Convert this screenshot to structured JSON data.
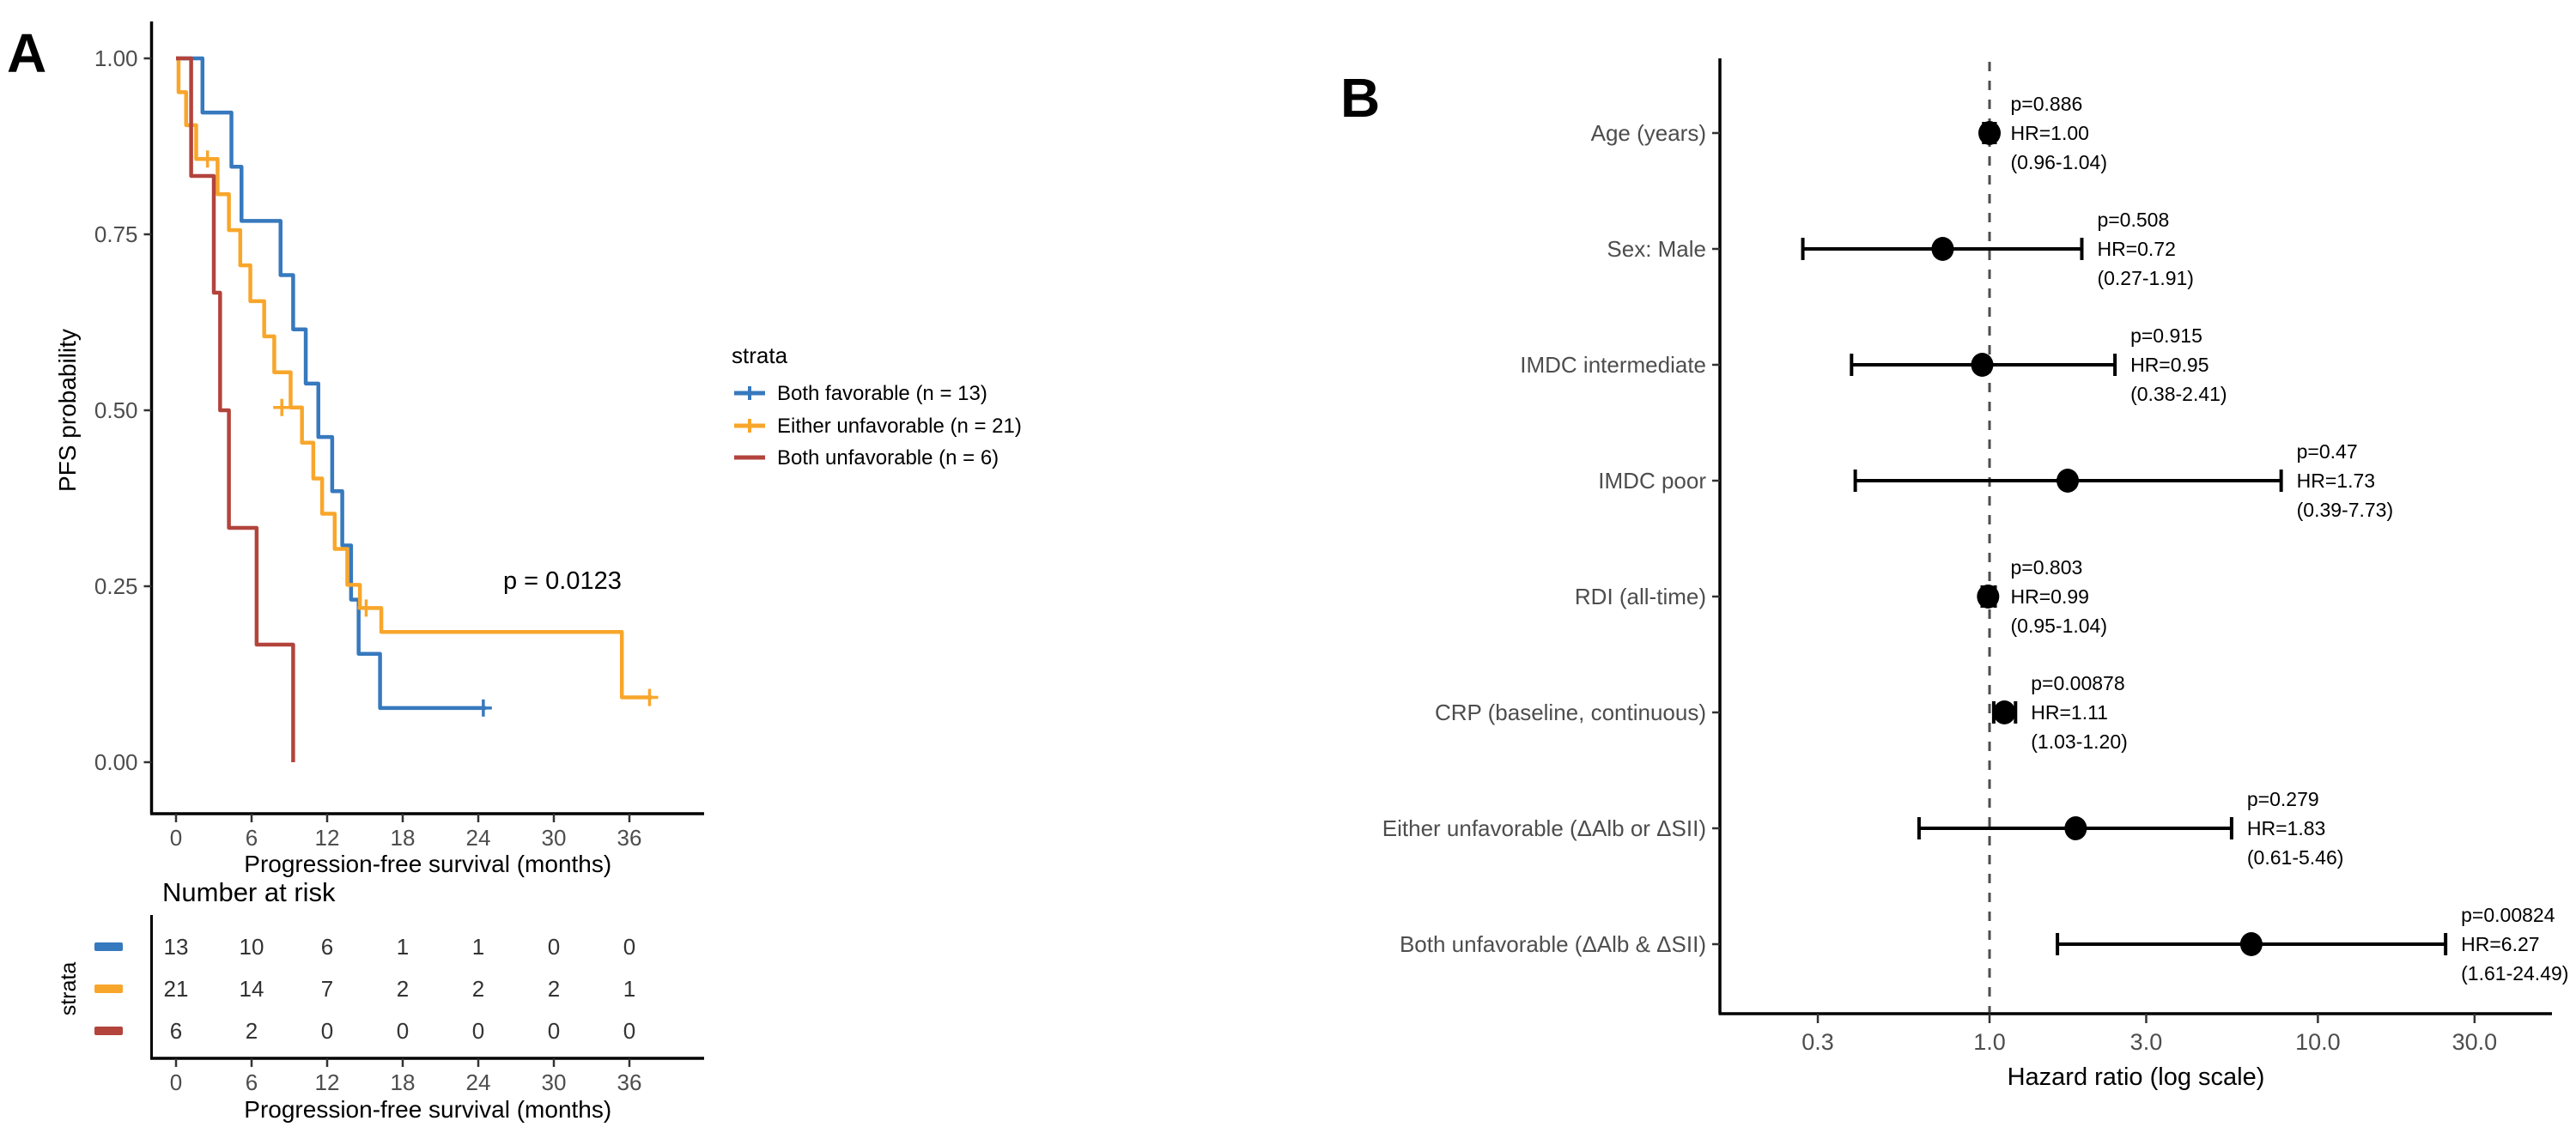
{
  "figure": {
    "panel_a_label": "A",
    "panel_b_label": "B"
  },
  "colors": {
    "blue": "#3779BE",
    "orange": "#F8A62B",
    "red": "#B2443C",
    "axis_text": "#4d4d4d",
    "black": "#000000",
    "ref_dash": "#4d4d4d"
  },
  "chart_data": [
    {
      "type": "line",
      "subtype": "kaplan-meier",
      "title": "",
      "xlabel": "Progression-free survival (months)",
      "ylabel": "PFS probability",
      "x_ticks": [
        0,
        6,
        12,
        18,
        24,
        30,
        36
      ],
      "y_ticks": [
        "1.00",
        "0.75",
        "0.50",
        "0.25",
        "0.00"
      ],
      "y_tick_values": [
        1.0,
        0.75,
        0.5,
        0.25,
        0.0
      ],
      "xlim": [
        -2,
        42
      ],
      "ylim": [
        0,
        1
      ],
      "grid": false,
      "p_value_label": "p = 0.0123",
      "legend_title": "strata",
      "legend_position": "right",
      "series": [
        {
          "name": "Both favorable (n = 13)",
          "color": "#3779BE",
          "steps": [
            [
              0,
              1.0
            ],
            [
              2.1,
              0.923
            ],
            [
              4.4,
              0.846
            ],
            [
              5.2,
              0.769
            ],
            [
              8.3,
              0.692
            ],
            [
              9.3,
              0.615
            ],
            [
              10.3,
              0.538
            ],
            [
              11.3,
              0.462
            ],
            [
              12.4,
              0.385
            ],
            [
              13.2,
              0.308
            ],
            [
              13.9,
              0.231
            ],
            [
              14.5,
              0.154
            ],
            [
              16.2,
              0.077
            ]
          ],
          "end": 24.6,
          "censors": [
            [
              24.4,
              0.077
            ]
          ]
        },
        {
          "name": "Either unfavorable (n = 21)",
          "color": "#F8A62B",
          "steps": [
            [
              0,
              1.0
            ],
            [
              0.2,
              0.952
            ],
            [
              0.8,
              0.905
            ],
            [
              1.6,
              0.857
            ],
            [
              3.3,
              0.807
            ],
            [
              4.2,
              0.756
            ],
            [
              5.1,
              0.706
            ],
            [
              5.9,
              0.655
            ],
            [
              7.0,
              0.605
            ],
            [
              7.8,
              0.554
            ],
            [
              9.1,
              0.504
            ],
            [
              10.0,
              0.454
            ],
            [
              10.9,
              0.403
            ],
            [
              11.6,
              0.353
            ],
            [
              12.6,
              0.303
            ],
            [
              13.6,
              0.252
            ],
            [
              14.6,
              0.219
            ],
            [
              16.3,
              0.185
            ],
            [
              35.4,
              0.092
            ]
          ],
          "end": 37.8,
          "censors": [
            [
              2.5,
              0.857
            ],
            [
              8.4,
              0.504
            ],
            [
              15.1,
              0.219
            ],
            [
              37.6,
              0.092
            ]
          ]
        },
        {
          "name": "Both unfavorable (n = 6)",
          "color": "#B2443C",
          "steps": [
            [
              0,
              1.0
            ],
            [
              1.2,
              0.833
            ],
            [
              3.0,
              0.667
            ],
            [
              3.5,
              0.5
            ],
            [
              4.2,
              0.333
            ],
            [
              6.4,
              0.167
            ],
            [
              9.3,
              0.0
            ]
          ],
          "end": 9.3,
          "censors": []
        }
      ],
      "risk_table": {
        "title": "Number at risk",
        "strata_axis_label": "strata",
        "xlabel": "Progression-free survival (months)",
        "x_ticks": [
          0,
          6,
          12,
          18,
          24,
          30,
          36
        ],
        "rows": [
          {
            "color": "#3779BE",
            "counts": [
              13,
              10,
              6,
              1,
              1,
              0,
              0
            ]
          },
          {
            "color": "#F8A62B",
            "counts": [
              21,
              14,
              7,
              2,
              2,
              2,
              1
            ]
          },
          {
            "color": "#B2443C",
            "counts": [
              6,
              2,
              0,
              0,
              0,
              0,
              0
            ]
          }
        ]
      }
    },
    {
      "type": "scatter",
      "subtype": "forest-plot",
      "xlabel": "Hazard ratio (log scale)",
      "x_scale": "log",
      "x_ticks": [
        0.3,
        1.0,
        3.0,
        10.0,
        30.0
      ],
      "x_tick_labels": [
        "0.3",
        "1.0",
        "3.0",
        "10.0",
        "30.0"
      ],
      "reference_line": 1.0,
      "grid": false,
      "rows": [
        {
          "label": "Age (years)",
          "hr": 1.0,
          "ci_low": 0.96,
          "ci_high": 1.04,
          "p_label": "p=0.886",
          "hr_label": "HR=1.00",
          "ci_label": "(0.96-1.04)"
        },
        {
          "label": "Sex: Male",
          "hr": 0.72,
          "ci_low": 0.27,
          "ci_high": 1.91,
          "p_label": "p=0.508",
          "hr_label": "HR=0.72",
          "ci_label": "(0.27-1.91)"
        },
        {
          "label": "IMDC intermediate",
          "hr": 0.95,
          "ci_low": 0.38,
          "ci_high": 2.41,
          "p_label": "p=0.915",
          "hr_label": "HR=0.95",
          "ci_label": "(0.38-2.41)"
        },
        {
          "label": "IMDC poor",
          "hr": 1.73,
          "ci_low": 0.39,
          "ci_high": 7.73,
          "p_label": "p=0.47",
          "hr_label": "HR=1.73",
          "ci_label": "(0.39-7.73)"
        },
        {
          "label": "RDI (all-time)",
          "hr": 0.99,
          "ci_low": 0.95,
          "ci_high": 1.04,
          "p_label": "p=0.803",
          "hr_label": "HR=0.99",
          "ci_label": "(0.95-1.04)"
        },
        {
          "label": "CRP (baseline, continuous)",
          "hr": 1.11,
          "ci_low": 1.03,
          "ci_high": 1.2,
          "p_label": "p=0.00878",
          "hr_label": "HR=1.11",
          "ci_label": "(1.03-1.20)"
        },
        {
          "label": "Either unfavorable (ΔAlb or ΔSII)",
          "hr": 1.83,
          "ci_low": 0.61,
          "ci_high": 5.46,
          "p_label": "p=0.279",
          "hr_label": "HR=1.83",
          "ci_label": "(0.61-5.46)"
        },
        {
          "label": "Both unfavorable (ΔAlb & ΔSII)",
          "hr": 6.27,
          "ci_low": 1.61,
          "ci_high": 24.49,
          "p_label": "p=0.00824",
          "hr_label": "HR=6.27",
          "ci_label": "(1.61-24.49)"
        }
      ]
    }
  ]
}
